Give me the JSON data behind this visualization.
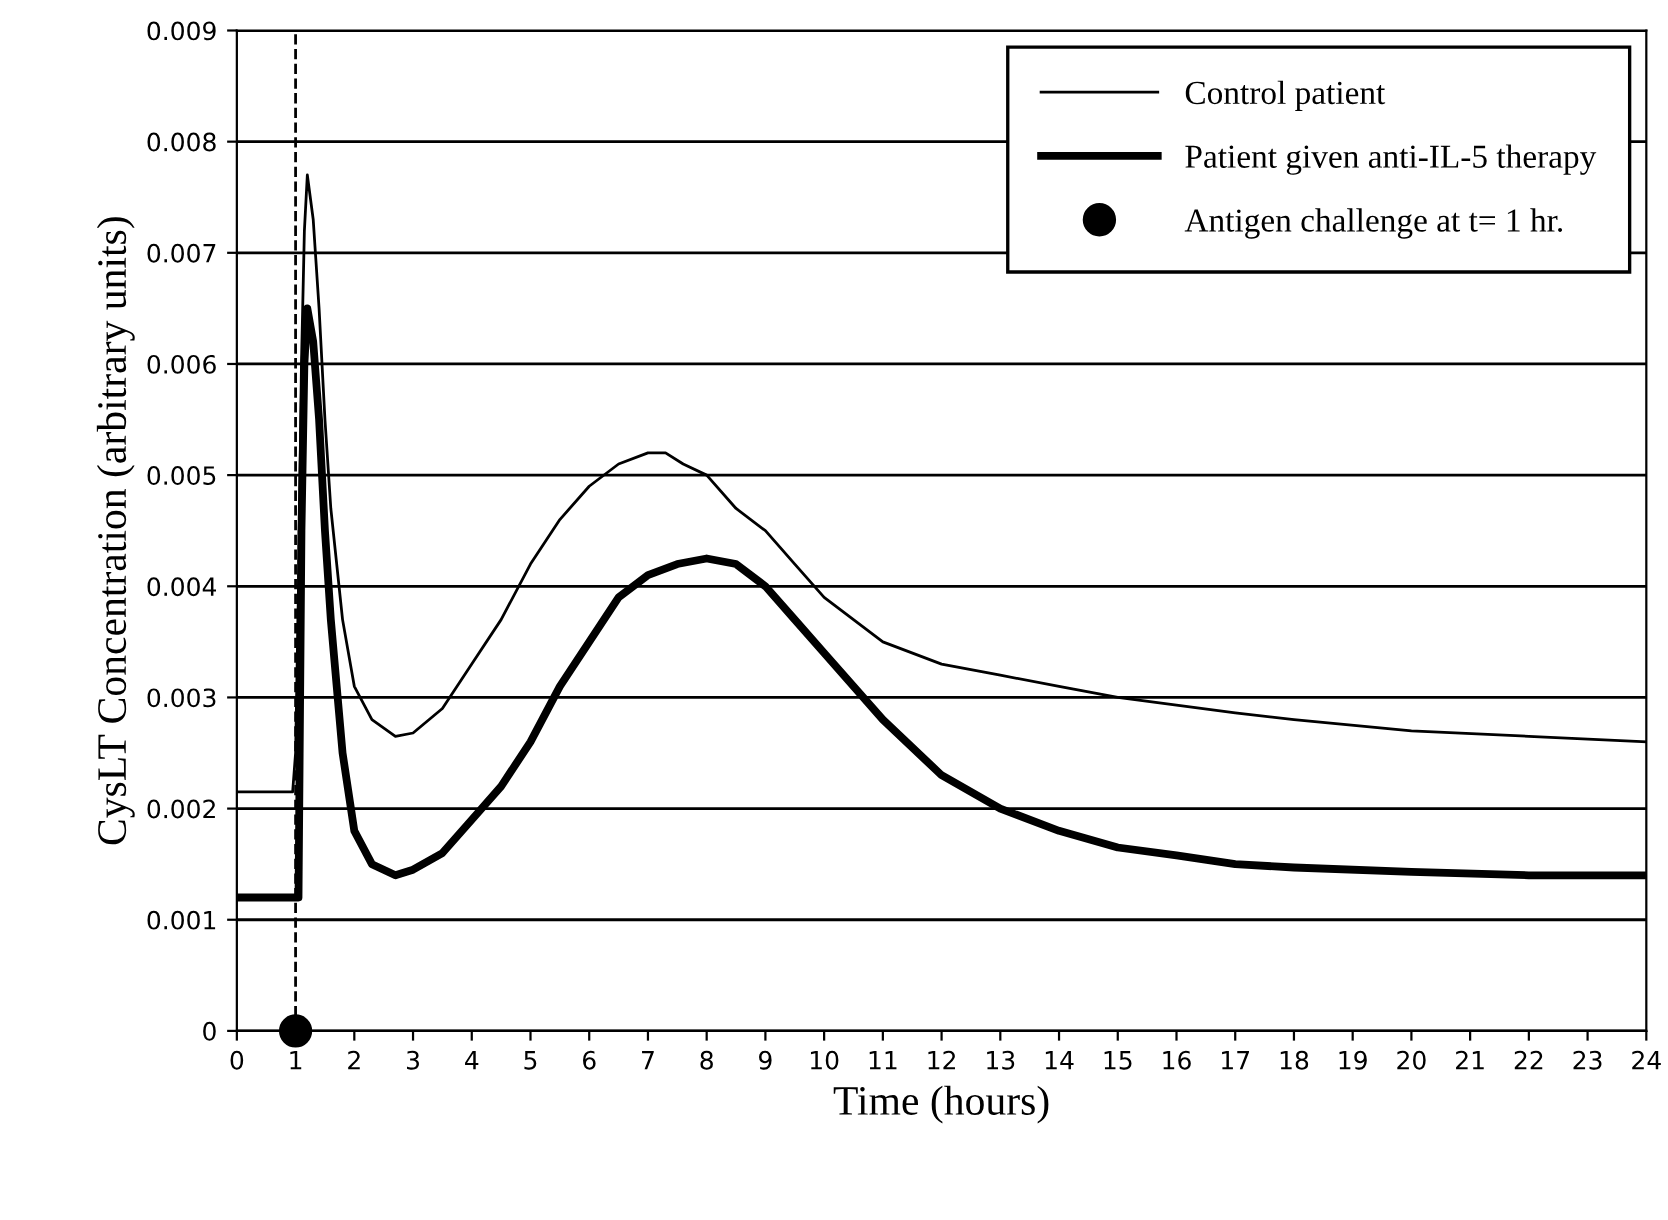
{
  "chart_data": {
    "type": "line",
    "xlabel": "Time (hours)",
    "ylabel": "CysLT Concentration (arbitrary units)",
    "xlim": [
      0,
      24
    ],
    "xticks": [
      0,
      1,
      2,
      3,
      4,
      5,
      6,
      7,
      8,
      9,
      10,
      11,
      12,
      13,
      14,
      15,
      16,
      17,
      18,
      19,
      20,
      21,
      22,
      23,
      24
    ],
    "ylim": [
      0,
      0.009
    ],
    "yticks": [
      0,
      0.001,
      0.002,
      0.003,
      0.004,
      0.005,
      0.006,
      0.007,
      0.008,
      0.009
    ],
    "grid": "y",
    "legend": "top right",
    "marker": "none",
    "line_style": "solid",
    "series": [
      {
        "name": "Control patient",
        "color": "#000000",
        "x": [
          0,
          0.5,
          0.95,
          1.0,
          1.05,
          1.1,
          1.15,
          1.2,
          1.3,
          1.4,
          1.5,
          1.6,
          1.8,
          2.0,
          2.3,
          2.7,
          3.0,
          3.5,
          4.0,
          4.5,
          5.0,
          5.5,
          6.0,
          6.5,
          7.0,
          7.3,
          7.6,
          8.0,
          8.5,
          9.0,
          9.5,
          10.0,
          11.0,
          12.0,
          13.0,
          14.0,
          15.0,
          16.0,
          17.0,
          18.0,
          20.0,
          22.0,
          24.0
        ],
        "values": [
          0.00215,
          0.00215,
          0.00215,
          0.0025,
          0.004,
          0.006,
          0.0072,
          0.0077,
          0.0073,
          0.0065,
          0.0055,
          0.0047,
          0.0037,
          0.0031,
          0.0028,
          0.00265,
          0.00268,
          0.0029,
          0.0033,
          0.0037,
          0.0042,
          0.0046,
          0.0049,
          0.0051,
          0.0052,
          0.0052,
          0.0051,
          0.005,
          0.0047,
          0.0045,
          0.0042,
          0.0039,
          0.0035,
          0.0033,
          0.0032,
          0.0031,
          0.003,
          0.00293,
          0.00286,
          0.0028,
          0.0027,
          0.00265,
          0.0026
        ]
      },
      {
        "name": "Patient given anti-IL-5 therapy",
        "color": "#000000",
        "x": [
          0,
          0.5,
          1.05,
          1.1,
          1.15,
          1.2,
          1.3,
          1.4,
          1.5,
          1.6,
          1.8,
          2.0,
          2.3,
          2.7,
          3.0,
          3.5,
          4.0,
          4.5,
          5.0,
          5.5,
          6.0,
          6.5,
          7.0,
          7.5,
          8.0,
          8.5,
          9.0,
          9.5,
          10.0,
          11.0,
          12.0,
          13.0,
          14.0,
          15.0,
          16.0,
          17.0,
          18.0,
          20.0,
          22.0,
          24.0
        ],
        "values": [
          0.0012,
          0.0012,
          0.0012,
          0.0045,
          0.006,
          0.0065,
          0.0062,
          0.0055,
          0.0045,
          0.0037,
          0.0025,
          0.0018,
          0.0015,
          0.0014,
          0.00145,
          0.0016,
          0.0019,
          0.0022,
          0.0026,
          0.0031,
          0.0035,
          0.0039,
          0.0041,
          0.0042,
          0.00425,
          0.0042,
          0.004,
          0.0037,
          0.0034,
          0.0028,
          0.0023,
          0.002,
          0.0018,
          0.00165,
          0.00158,
          0.0015,
          0.00147,
          0.00143,
          0.0014,
          0.0014
        ]
      },
      {
        "type": "scatter",
        "marker": "circle",
        "name": "Antigen challenge at t= 1 hr.",
        "color": "#000000",
        "x": [
          1
        ],
        "values": [
          0
        ]
      }
    ],
    "ref_lines": [
      {
        "axis": "x",
        "value": 1,
        "color": "#000000",
        "line_style": "dashed"
      }
    ]
  }
}
